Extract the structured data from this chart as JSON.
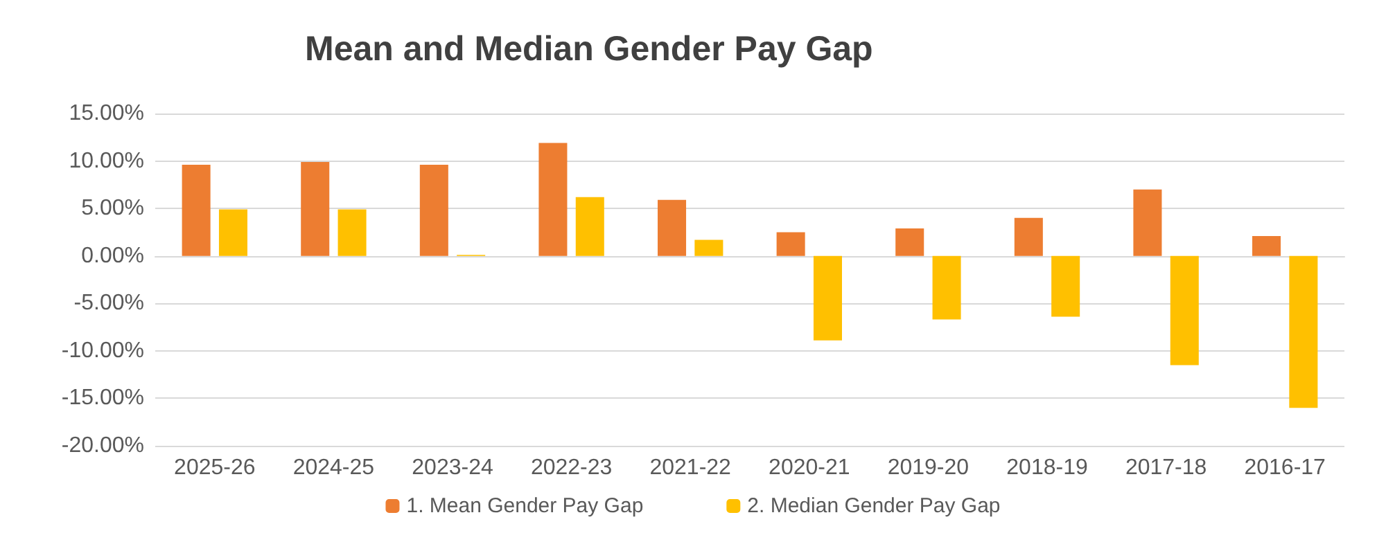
{
  "chart_data": {
    "type": "bar",
    "title": "Mean and Median Gender Pay Gap",
    "categories": [
      "2025-26",
      "2024-25",
      "2023-24",
      "2022-23",
      "2021-22",
      "2020-21",
      "2019-20",
      "2018-19",
      "2017-18",
      "2016-17"
    ],
    "series": [
      {
        "name": "1. Mean Gender Pay Gap",
        "color": "#ed7d31",
        "values": [
          9.6,
          9.9,
          9.6,
          11.9,
          5.9,
          2.5,
          2.9,
          4.0,
          7.0,
          2.1
        ]
      },
      {
        "name": "2. Median Gender Pay Gap",
        "color": "#ffc000",
        "values": [
          4.9,
          4.9,
          0.1,
          6.2,
          1.7,
          -8.9,
          -6.7,
          -6.4,
          -11.5,
          -16.0
        ]
      }
    ],
    "ylim": [
      -20,
      15
    ],
    "yticks": [
      {
        "value": -20,
        "label": "-20.00%"
      },
      {
        "value": -15,
        "label": "-15.00%"
      },
      {
        "value": -10,
        "label": "-10.00%"
      },
      {
        "value": -5,
        "label": "-5.00%"
      },
      {
        "value": 0,
        "label": "0.00%"
      },
      {
        "value": 5,
        "label": "5.00%"
      },
      {
        "value": 10,
        "label": "10.00%"
      },
      {
        "value": 15,
        "label": "15.00%"
      }
    ],
    "grid": "y",
    "legend": "bottom"
  }
}
